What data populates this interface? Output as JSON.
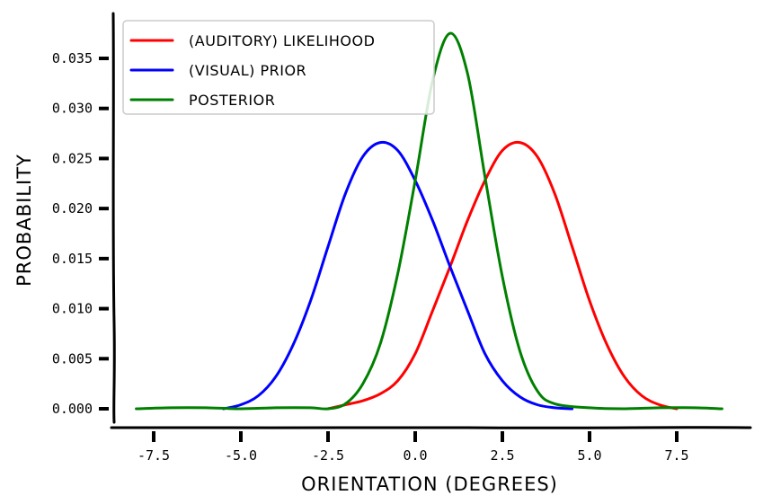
{
  "chart_data": {
    "type": "line",
    "xlabel": "ORIENTATION (DEGREES)",
    "ylabel": "PROBABILITY",
    "xlim": [
      -8.5,
      9.0
    ],
    "ylim": [
      -0.0015,
      0.039
    ],
    "x_ticks": [
      -7.5,
      -5.0,
      -2.5,
      0.0,
      2.5,
      5.0,
      7.5
    ],
    "x_tick_labels": [
      "-7.5",
      "-5.0",
      "-2.5",
      "0.0",
      "2.5",
      "5.0",
      "7.5"
    ],
    "y_ticks": [
      0.0,
      0.005,
      0.01,
      0.015,
      0.02,
      0.025,
      0.03,
      0.035
    ],
    "y_tick_labels": [
      "0.000",
      "0.005",
      "0.010",
      "0.015",
      "0.020",
      "0.025",
      "0.030",
      "0.035"
    ],
    "grid": false,
    "legend_position": "top-left",
    "series": [
      {
        "name": "(AUDITORY) LIKELIHOOD",
        "color": "#ff0000",
        "x": [
          -2.5,
          -2,
          -1.5,
          -1,
          -0.5,
          0,
          0.5,
          1,
          1.5,
          2,
          2.5,
          3,
          3.5,
          4,
          4.5,
          5,
          5.5,
          6,
          6.5,
          7,
          7.5
        ],
        "y": [
          0.0,
          0.0004,
          0.0008,
          0.0015,
          0.0028,
          0.0055,
          0.0098,
          0.0142,
          0.0188,
          0.0228,
          0.0258,
          0.0266,
          0.0252,
          0.0215,
          0.0162,
          0.0108,
          0.0064,
          0.0032,
          0.0013,
          0.0004,
          0.0
        ]
      },
      {
        "name": "(VISUAL) PRIOR",
        "color": "#0000ff",
        "x": [
          -5.5,
          -5,
          -4.5,
          -4,
          -3.5,
          -3,
          -2.5,
          -2,
          -1.5,
          -1,
          -0.5,
          0,
          0.5,
          1,
          1.5,
          2,
          2.5,
          3,
          3.5,
          4,
          4.5
        ],
        "y": [
          0.0,
          0.0004,
          0.0013,
          0.0032,
          0.0064,
          0.0108,
          0.0162,
          0.0215,
          0.0252,
          0.0266,
          0.0258,
          0.0228,
          0.0188,
          0.0142,
          0.0098,
          0.0055,
          0.0028,
          0.0012,
          0.0004,
          0.0001,
          0.0
        ]
      },
      {
        "name": "POSTERIOR",
        "color": "#008000",
        "x": [
          -8,
          -7,
          -6,
          -5,
          -4,
          -3,
          -2.5,
          -2,
          -1.5,
          -1,
          -0.5,
          0,
          0.5,
          1,
          1.5,
          2,
          2.5,
          3,
          3.5,
          4,
          5,
          6,
          7,
          8,
          8.8
        ],
        "y": [
          0.0,
          0.0001,
          0.0001,
          0.0,
          0.0001,
          0.0001,
          0.0,
          0.0005,
          0.0025,
          0.0065,
          0.0135,
          0.0228,
          0.0328,
          0.0375,
          0.0335,
          0.0232,
          0.0132,
          0.0058,
          0.0018,
          0.0005,
          0.0001,
          0.0,
          0.0001,
          0.0001,
          0.0
        ]
      }
    ]
  }
}
